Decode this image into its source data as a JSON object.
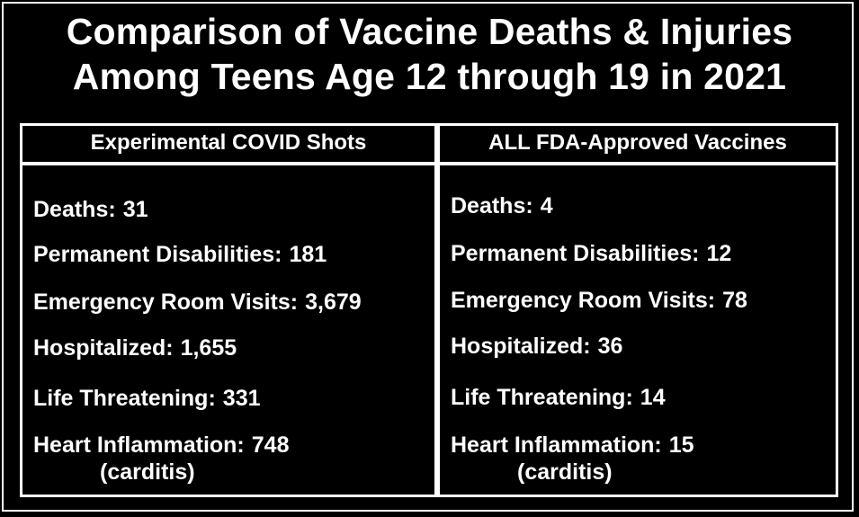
{
  "title": {
    "line1": "Comparison of Vaccine Deaths & Injuries",
    "line2": "Among Teens Age 12 through 19 in 2021"
  },
  "left": {
    "header": "Experimental COVID Shots",
    "stats": [
      {
        "label": "Deaths:",
        "value": "31"
      },
      {
        "label": "Permanent Disabilities:",
        "value": "181"
      },
      {
        "label": "Emergency Room Visits:",
        "value": "3,679"
      },
      {
        "label": "Hospitalized:",
        "value": "1,655"
      },
      {
        "label": "Life Threatening:",
        "value": "331"
      },
      {
        "label": "Heart Inflammation:",
        "value": "748",
        "sub": "(carditis)"
      }
    ]
  },
  "right": {
    "header": "ALL FDA-Approved Vaccines",
    "stats": [
      {
        "label": "Deaths:",
        "value": "4"
      },
      {
        "label": "Permanent Disabilities:",
        "value": "12"
      },
      {
        "label": "Emergency Room Visits:",
        "value": "78"
      },
      {
        "label": "Hospitalized:",
        "value": "36"
      },
      {
        "label": "Life Threatening:",
        "value": "14"
      },
      {
        "label": "Heart Inflammation:",
        "value": "15",
        "sub": "(carditis)"
      }
    ]
  },
  "colors": {
    "background": "#000000",
    "text": "#ffffff",
    "border": "#ffffff"
  }
}
